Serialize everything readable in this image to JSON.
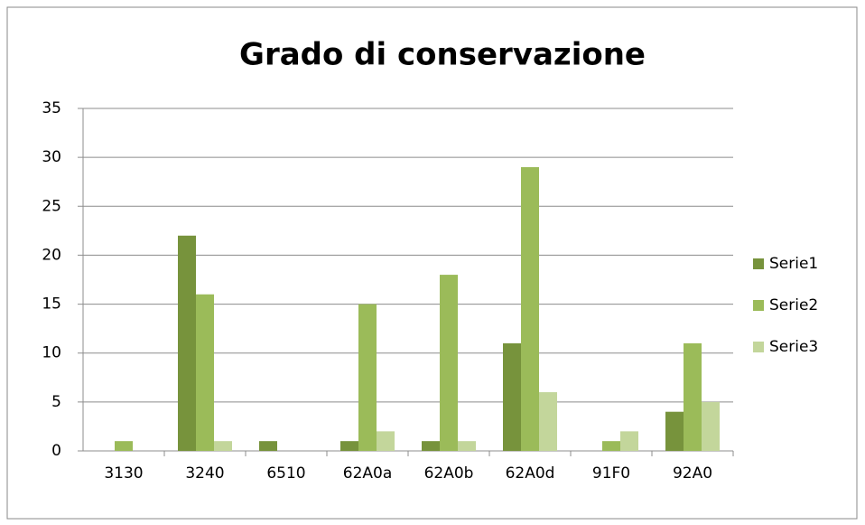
{
  "chart_data": {
    "type": "bar",
    "title": "Grado di conservazione",
    "categories": [
      "3130",
      "3240",
      "6510",
      "62A0a",
      "62A0b",
      "62A0d",
      "91F0",
      "92A0"
    ],
    "series": [
      {
        "name": "Serie1",
        "color": "#77933c",
        "values": [
          0,
          22,
          1,
          1,
          1,
          11,
          0,
          4
        ]
      },
      {
        "name": "Serie2",
        "color": "#9bbb59",
        "values": [
          1,
          16,
          0,
          15,
          18,
          29,
          1,
          11
        ]
      },
      {
        "name": "Serie3",
        "color": "#c3d69b",
        "values": [
          0,
          1,
          0,
          2,
          1,
          6,
          2,
          5
        ]
      }
    ],
    "ylim": [
      0,
      35
    ],
    "yticks": [
      0,
      5,
      10,
      15,
      20,
      25,
      30,
      35
    ],
    "grid": true,
    "legend": "right"
  }
}
